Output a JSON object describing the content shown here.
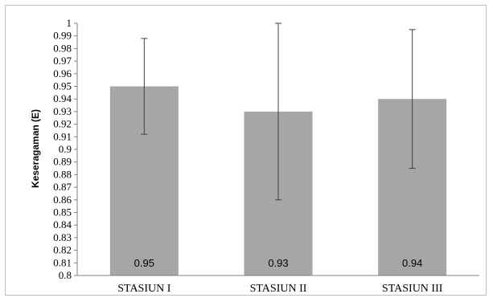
{
  "chart_data": {
    "type": "bar",
    "title": "",
    "xlabel": "",
    "ylabel": "Keseragaman (E)",
    "ylim": [
      0.8,
      1.0
    ],
    "ytick_step": 0.01,
    "yticks": [
      "0.8",
      "0.81",
      "0.82",
      "0.83",
      "0.84",
      "0.85",
      "0.86",
      "0.87",
      "0.88",
      "0.89",
      "0.9",
      "0.91",
      "0.92",
      "0.93",
      "0.94",
      "0.95",
      "0.96",
      "0.97",
      "0.98",
      "0.99",
      "1"
    ],
    "categories": [
      "STASIUN I",
      "STASIUN II",
      "STASIUN III"
    ],
    "values": [
      0.95,
      0.93,
      0.94
    ],
    "value_labels": [
      "0.95",
      "0.93",
      "0.94"
    ],
    "error_bars": [
      {
        "low": 0.912,
        "high": 0.988
      },
      {
        "low": 0.86,
        "high": 1.0
      },
      {
        "low": 0.885,
        "high": 0.995
      }
    ],
    "grid": false,
    "legend": "none",
    "bar_color": "#a6a6a6",
    "axis_color": "#808080"
  }
}
